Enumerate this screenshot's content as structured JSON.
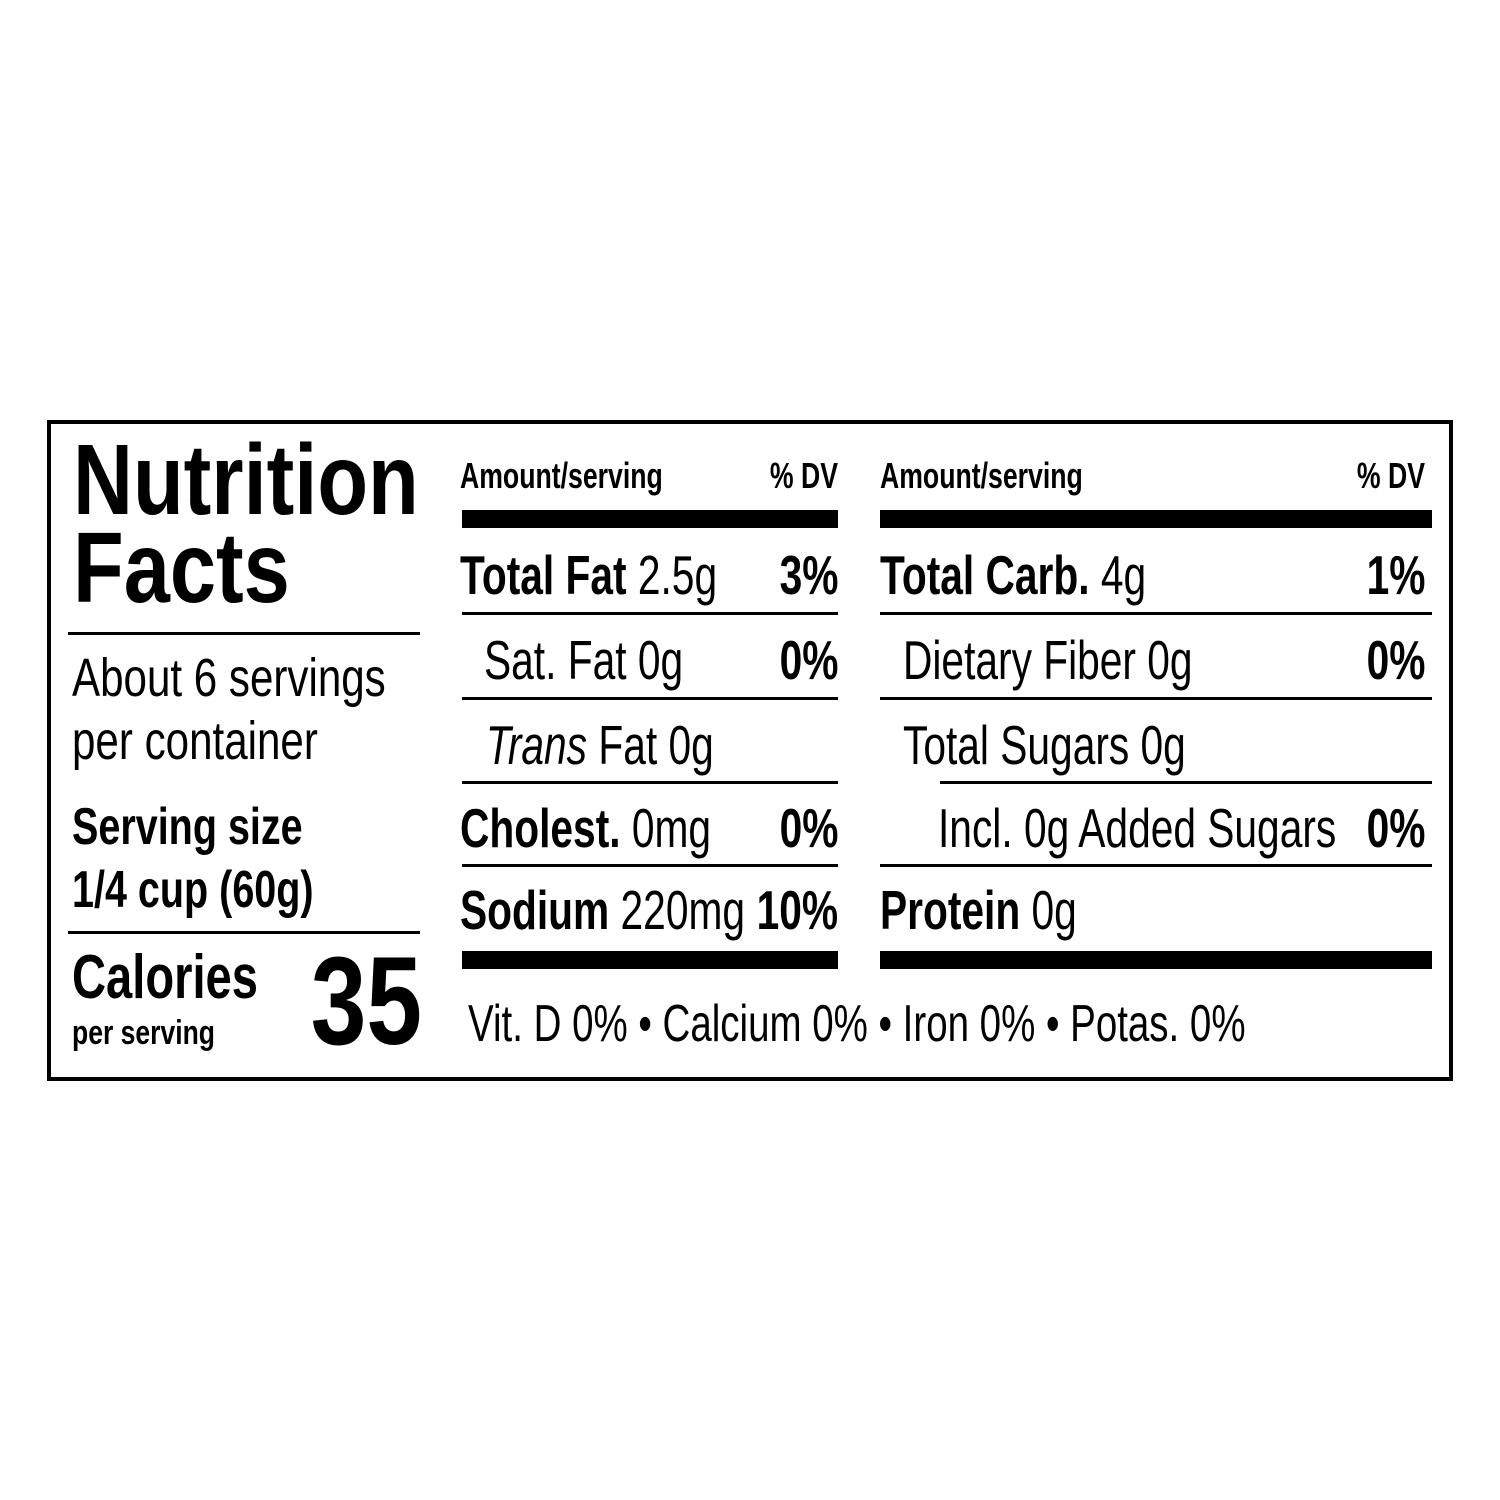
{
  "title": {
    "line1": "Nutrition",
    "line2": "Facts"
  },
  "servings": {
    "line1": "About 6 servings",
    "line2": "per container"
  },
  "serving_size": {
    "label": "Serving size",
    "value": "1/4 cup (60g)"
  },
  "calories": {
    "label": "Calories",
    "sublabel": "per serving",
    "value": "35"
  },
  "header": {
    "amount": "Amount/serving",
    "dv": "% DV"
  },
  "left_rows": [
    {
      "name": "Total Fat",
      "amount": "2.5g",
      "dv": "3%"
    },
    {
      "name": "Sat. Fat",
      "amount": "0g",
      "dv": "0%"
    },
    {
      "name_italic": "Trans",
      "name": "Fat",
      "amount": "0g",
      "dv": ""
    },
    {
      "name": "Cholest.",
      "amount": "0mg",
      "dv": "0%"
    },
    {
      "name": "Sodium",
      "amount": "220mg",
      "dv": "10%"
    }
  ],
  "right_rows": [
    {
      "name": "Total Carb.",
      "amount": "4g",
      "dv": "1%"
    },
    {
      "name": "Dietary Fiber",
      "amount": "0g",
      "dv": "0%"
    },
    {
      "name": "Total Sugars",
      "amount": "0g",
      "dv": ""
    },
    {
      "name": "Incl. 0g Added Sugars",
      "amount": "",
      "dv": "0%"
    },
    {
      "name": "Protein",
      "amount": "0g",
      "dv": ""
    }
  ],
  "footer": "Vit. D 0% • Calcium 0% • Iron 0% • Potas. 0%"
}
